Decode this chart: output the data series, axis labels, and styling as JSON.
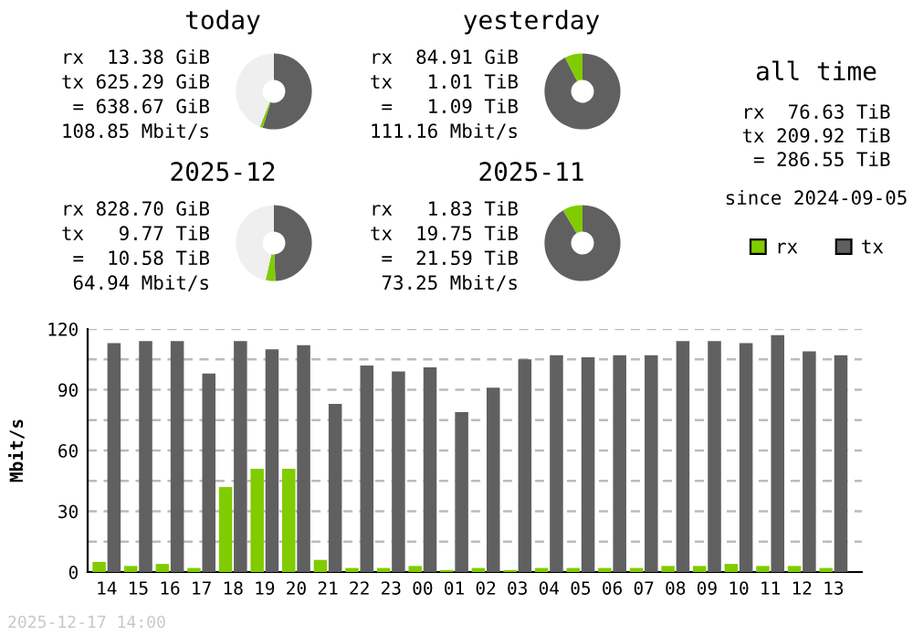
{
  "chart_data": [
    {
      "type": "donut",
      "title": "today",
      "categories": [
        null,
        null,
        null
      ],
      "values": [
        54.8,
        1.2,
        44.0
      ],
      "colors": [
        "#606060",
        "#80cc00",
        "#efefef"
      ],
      "annotations": [
        "rx  13.38 GiB",
        "tx 625.29 GiB",
        " = 638.67 GiB",
        "108.85 Mbit/s"
      ]
    },
    {
      "type": "donut",
      "title": "yesterday",
      "categories": [
        null,
        null
      ],
      "values": [
        92.4,
        7.6
      ],
      "colors": [
        "#606060",
        "#80cc00"
      ],
      "annotations": [
        "rx  84.91 GiB",
        "tx   1.01 TiB",
        " =   1.09 TiB",
        "111.16 Mbit/s"
      ]
    },
    {
      "type": "donut",
      "title": "2025-12",
      "categories": [
        null,
        null,
        null
      ],
      "values": [
        49.4,
        4.1,
        46.5
      ],
      "colors": [
        "#606060",
        "#80cc00",
        "#efefef"
      ],
      "annotations": [
        "rx 828.70 GiB",
        "tx   9.77 TiB",
        " =  10.58 TiB",
        "64.94 Mbit/s"
      ]
    },
    {
      "type": "donut",
      "title": "2025-11",
      "categories": [
        null,
        null
      ],
      "values": [
        91.5,
        8.5
      ],
      "colors": [
        "#606060",
        "#80cc00"
      ],
      "annotations": [
        "rx   1.83 TiB",
        "tx  19.75 TiB",
        " =  21.59 TiB",
        "73.25 Mbit/s"
      ]
    },
    {
      "type": "other",
      "title": "all time",
      "annotations": [
        "rx  76.63 TiB",
        "tx 209.92 TiB",
        " = 286.55 TiB",
        "since 2024-09-05"
      ]
    },
    {
      "type": "bar",
      "ylabel": "Mbit/s",
      "categories": [
        "14",
        "15",
        "16",
        "17",
        "18",
        "19",
        "20",
        "21",
        "22",
        "23",
        "00",
        "01",
        "02",
        "03",
        "04",
        "05",
        "06",
        "07",
        "08",
        "09",
        "10",
        "11",
        "12",
        "13"
      ],
      "series": [
        {
          "name": "rx",
          "color": "#80cc00",
          "values": [
            5,
            3,
            4,
            2,
            42,
            51,
            51,
            6,
            2,
            2,
            3,
            1,
            2,
            1,
            2,
            2,
            2,
            2,
            3,
            3,
            4,
            3,
            3,
            2
          ]
        },
        {
          "name": "tx",
          "color": "#606060",
          "values": [
            113,
            114,
            114,
            98,
            114,
            110,
            112,
            83,
            102,
            99,
            101,
            79,
            91,
            105,
            107,
            106,
            107,
            107,
            114,
            114,
            113,
            117,
            109,
            107
          ]
        }
      ],
      "ylim": [
        0,
        120
      ],
      "yticks": [
        0,
        {
          "value": 15,
          "label": null
        },
        30,
        {
          "value": 45,
          "label": null
        },
        60,
        {
          "value": 75,
          "label": null
        },
        90,
        {
          "value": 105,
          "label": null
        },
        120
      ],
      "grid": "y",
      "legend": "top right",
      "annotations": [
        "2025-12-17 14:00"
      ]
    }
  ]
}
